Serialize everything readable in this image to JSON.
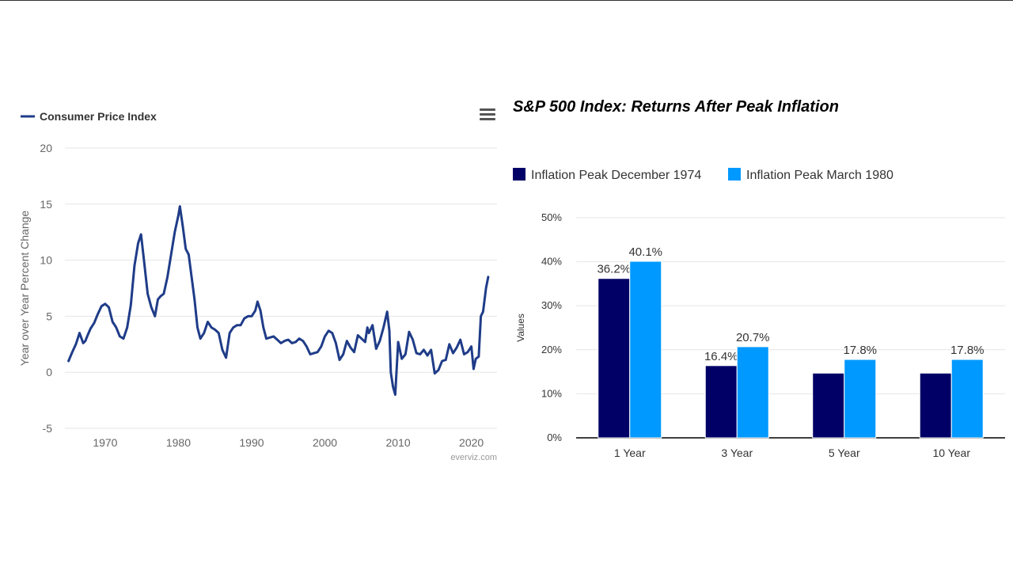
{
  "left_chart": {
    "legend_label": "Consumer Price Index",
    "credit": "everviz.com",
    "menu_icon": "hamburger-menu-icon",
    "line_color": "#1f3c88"
  },
  "right_chart": {
    "title": "S&P 500 Index: Returns After Peak Inflation",
    "legend": [
      "Inflation Peak December 1974",
      "Inflation Peak March 1980"
    ],
    "colors": [
      "#000066",
      "#0099ff"
    ]
  },
  "chart_data": [
    {
      "type": "line",
      "title": "",
      "xlabel": "",
      "ylabel": "Year over Year Percent Change",
      "xlim": [
        1964.5,
        2023.5
      ],
      "ylim": [
        -5,
        20
      ],
      "xticks": [
        1970,
        1980,
        1990,
        2000,
        2010,
        2020
      ],
      "yticks": [
        -5,
        0,
        5,
        10,
        15,
        20
      ],
      "grid": true,
      "legend_position": "top-left",
      "series": [
        {
          "name": "Consumer Price Index",
          "x": [
            1965.0,
            1965.5,
            1966.0,
            1966.5,
            1967.0,
            1967.3,
            1967.6,
            1968.0,
            1968.5,
            1969.0,
            1969.5,
            1970.0,
            1970.5,
            1971.0,
            1971.5,
            1972.0,
            1972.5,
            1973.0,
            1973.5,
            1974.0,
            1974.5,
            1974.9,
            1975.3,
            1975.8,
            1976.3,
            1976.8,
            1977.2,
            1977.6,
            1978.0,
            1978.5,
            1979.0,
            1979.5,
            1980.0,
            1980.2,
            1980.6,
            1981.0,
            1981.4,
            1981.8,
            1982.2,
            1982.6,
            1983.0,
            1983.5,
            1984.0,
            1984.5,
            1985.0,
            1985.5,
            1986.0,
            1986.5,
            1987.0,
            1987.5,
            1988.0,
            1988.5,
            1989.0,
            1989.5,
            1990.0,
            1990.5,
            1990.8,
            1991.2,
            1991.6,
            1992.0,
            1992.5,
            1993.0,
            1993.5,
            1994.0,
            1994.5,
            1995.0,
            1995.5,
            1996.0,
            1996.5,
            1997.0,
            1997.5,
            1998.0,
            1998.5,
            1999.0,
            1999.5,
            2000.0,
            2000.5,
            2001.0,
            2001.5,
            2002.0,
            2002.5,
            2003.0,
            2003.5,
            2004.0,
            2004.5,
            2005.0,
            2005.5,
            2005.8,
            2006.0,
            2006.5,
            2007.0,
            2007.5,
            2008.0,
            2008.5,
            2008.8,
            2009.0,
            2009.3,
            2009.6,
            2010.0,
            2010.5,
            2011.0,
            2011.5,
            2012.0,
            2012.5,
            2013.0,
            2013.5,
            2014.0,
            2014.5,
            2015.0,
            2015.5,
            2016.0,
            2016.5,
            2017.0,
            2017.5,
            2018.0,
            2018.5,
            2019.0,
            2019.5,
            2020.0,
            2020.3,
            2020.6,
            2021.0,
            2021.3,
            2021.6,
            2022.0,
            2022.3
          ],
          "values": [
            1.0,
            1.8,
            2.5,
            3.5,
            2.6,
            2.8,
            3.3,
            3.9,
            4.4,
            5.2,
            5.9,
            6.1,
            5.8,
            4.5,
            4.0,
            3.2,
            3.0,
            4.0,
            6.0,
            9.5,
            11.5,
            12.3,
            10.0,
            7.0,
            5.8,
            5.0,
            6.5,
            6.8,
            7.0,
            8.5,
            10.5,
            12.5,
            14.0,
            14.8,
            13.0,
            11.0,
            10.5,
            8.5,
            6.5,
            4.0,
            3.0,
            3.5,
            4.5,
            4.0,
            3.8,
            3.5,
            2.0,
            1.3,
            3.5,
            4.0,
            4.2,
            4.2,
            4.8,
            5.0,
            5.0,
            5.5,
            6.3,
            5.5,
            4.0,
            3.0,
            3.1,
            3.2,
            2.9,
            2.6,
            2.8,
            2.9,
            2.6,
            2.7,
            3.0,
            2.8,
            2.3,
            1.6,
            1.7,
            1.8,
            2.3,
            3.2,
            3.7,
            3.5,
            2.6,
            1.1,
            1.6,
            2.8,
            2.2,
            1.8,
            3.3,
            3.0,
            2.7,
            4.0,
            3.5,
            4.2,
            2.1,
            2.8,
            4.0,
            5.4,
            3.7,
            0.0,
            -1.3,
            -2.0,
            2.7,
            1.2,
            1.6,
            3.6,
            2.9,
            1.7,
            1.6,
            2.0,
            1.5,
            2.0,
            -0.1,
            0.2,
            1.0,
            1.1,
            2.5,
            1.7,
            2.2,
            2.9,
            1.6,
            1.8,
            2.3,
            0.3,
            1.2,
            1.4,
            5.0,
            5.4,
            7.5,
            8.5
          ]
        }
      ]
    },
    {
      "type": "bar",
      "title": "S&P 500 Index: Returns After Peak Inflation",
      "xlabel": "",
      "ylabel": "Values",
      "categories": [
        "1 Year",
        "3 Year",
        "5 Year",
        "10 Year"
      ],
      "ylim": [
        0,
        50
      ],
      "yticks": [
        "0%",
        "10%",
        "20%",
        "30%",
        "40%",
        "50%"
      ],
      "grid": true,
      "legend_position": "top-left",
      "series": [
        {
          "name": "Inflation Peak December 1974",
          "values": [
            36.2,
            16.4,
            14.7,
            14.7
          ],
          "labels": [
            "36.2%",
            "16.4%",
            "",
            ""
          ]
        },
        {
          "name": "Inflation Peak March 1980",
          "values": [
            40.1,
            20.7,
            17.8,
            17.8
          ],
          "labels": [
            "40.1%",
            "20.7%",
            "17.8%",
            "17.8%"
          ]
        }
      ]
    }
  ]
}
